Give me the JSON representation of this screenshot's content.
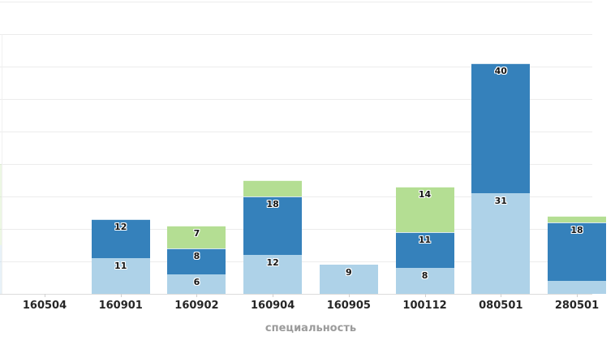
{
  "chart_data": {
    "type": "bar",
    "stacked": true,
    "title": "",
    "xlabel": "специальность",
    "ylabel": "",
    "categories": [
      "160504",
      "160901",
      "160902",
      "160904",
      "160905",
      "100112",
      "080501",
      "280501"
    ],
    "series": [
      {
        "name": "light-blue-series",
        "color": "#aed2e8",
        "values": [
          0,
          11,
          6,
          12,
          9,
          8,
          31,
          4
        ]
      },
      {
        "name": "dark-blue-series",
        "color": "#3581bb",
        "values": [
          0,
          12,
          8,
          18,
          0,
          11,
          40,
          18
        ]
      },
      {
        "name": "green-series",
        "color": "#b4de93",
        "values": [
          0,
          0,
          7,
          5,
          0,
          14,
          0,
          2
        ]
      }
    ],
    "ylim": [
      0,
      90
    ],
    "grid": "horizontal",
    "grid_step": 10,
    "y_tick_labels_visible": false,
    "legend": "none",
    "value_labels_min": 6,
    "value_label_color": "#141414",
    "grid_color": "#ececec",
    "axis_line_color": "#dcdcdc",
    "tick_label_color": "#262626",
    "axis_title_color": "#9b9b9b"
  }
}
